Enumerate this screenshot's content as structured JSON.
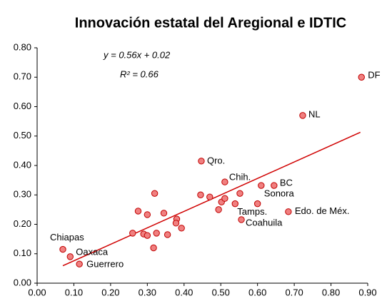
{
  "chart_data": {
    "type": "scatter",
    "title": "Innovación estatal del Aregional e IDTIC",
    "annotations": [
      "y = 0.56x + 0.02",
      "R² = 0.66"
    ],
    "x": [
      0.07,
      0.09,
      0.115,
      0.26,
      0.275,
      0.29,
      0.3,
      0.3,
      0.32,
      0.317,
      0.325,
      0.345,
      0.355,
      0.38,
      0.378,
      0.393,
      0.445,
      0.47,
      0.494,
      0.502,
      0.511,
      0.539,
      0.552,
      0.556,
      0.6,
      0.61,
      0.645,
      0.684,
      0.723,
      0.883,
      0.447,
      0.511
    ],
    "y": [
      0.115,
      0.09,
      0.065,
      0.17,
      0.245,
      0.167,
      0.162,
      0.233,
      0.305,
      0.12,
      0.17,
      0.238,
      0.165,
      0.218,
      0.204,
      0.187,
      0.3,
      0.293,
      0.25,
      0.276,
      0.288,
      0.27,
      0.305,
      0.216,
      0.27,
      0.332,
      0.332,
      0.243,
      0.57,
      0.7,
      0.415,
      0.344
    ],
    "labels": [
      "Chiapas",
      "Oaxaca",
      "Guerrero",
      null,
      null,
      null,
      null,
      null,
      null,
      null,
      null,
      null,
      null,
      null,
      null,
      null,
      null,
      null,
      null,
      null,
      null,
      "Tamps.",
      null,
      "Coahuila",
      null,
      "Sonora",
      "BC",
      "Edo. de Méx.",
      "NL",
      "DF",
      "Qro.",
      "Chih."
    ],
    "color": "#f08080",
    "trendline": {
      "color": "#d00000",
      "x": [
        0.07,
        0.88
      ],
      "y": [
        0.0592,
        0.5128
      ]
    },
    "xlim": [
      0,
      0.9
    ],
    "xticks": [
      {
        "value": 0,
        "label": "0.00"
      },
      {
        "value": 0.1,
        "label": "0.10"
      },
      {
        "value": 0.2,
        "label": "0.20"
      },
      {
        "value": 0.3,
        "label": "0.30"
      },
      {
        "value": 0.4,
        "label": "0.40"
      },
      {
        "value": 0.5,
        "label": "0.50"
      },
      {
        "value": 0.6,
        "label": "0.60"
      },
      {
        "value": 0.7,
        "label": "0.70"
      },
      {
        "value": 0.8,
        "label": "0.80"
      },
      {
        "value": 0.9,
        "label": "0.90"
      }
    ],
    "ylim": [
      0,
      0.8
    ],
    "yticks": [
      {
        "value": 0,
        "label": "0.00"
      },
      {
        "value": 0.1,
        "label": "0.10"
      },
      {
        "value": 0.2,
        "label": "0.20"
      },
      {
        "value": 0.3,
        "label": "0.30"
      },
      {
        "value": 0.4,
        "label": "0.40"
      },
      {
        "value": 0.5,
        "label": "0.50"
      },
      {
        "value": 0.6,
        "label": "0.60"
      },
      {
        "value": 0.7,
        "label": "0.70"
      },
      {
        "value": 0.8,
        "label": "0.80"
      }
    ],
    "grid": false
  }
}
